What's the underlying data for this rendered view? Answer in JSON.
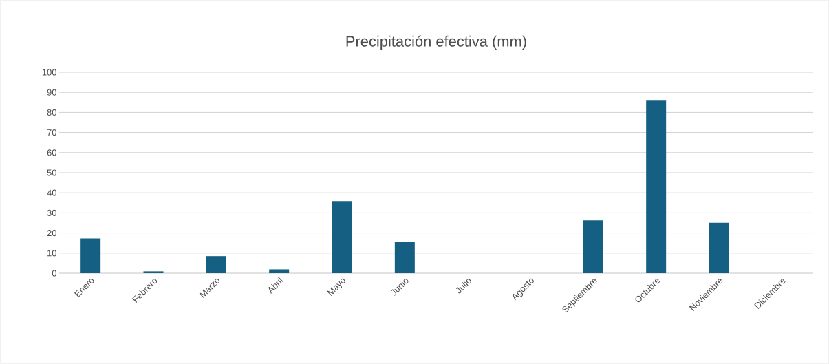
{
  "chart_data": {
    "type": "bar",
    "title": "Precipitación efectiva (mm)",
    "categories": [
      "Enero",
      "Febrero",
      "Marzo",
      "Abril",
      "Mayo",
      "Junio",
      "Julio",
      "Agosto",
      "Septiembre",
      "Octubre",
      "Noviembre",
      "Diciembre"
    ],
    "values": [
      17.3,
      0.9,
      8.5,
      1.9,
      35.9,
      15.4,
      0,
      0,
      26.3,
      85.9,
      25.1,
      0
    ],
    "color": "#156082",
    "ylim": [
      0,
      100
    ],
    "yticks": [
      0,
      10,
      20,
      30,
      40,
      50,
      60,
      70,
      80,
      90,
      100
    ],
    "grid": "y"
  }
}
